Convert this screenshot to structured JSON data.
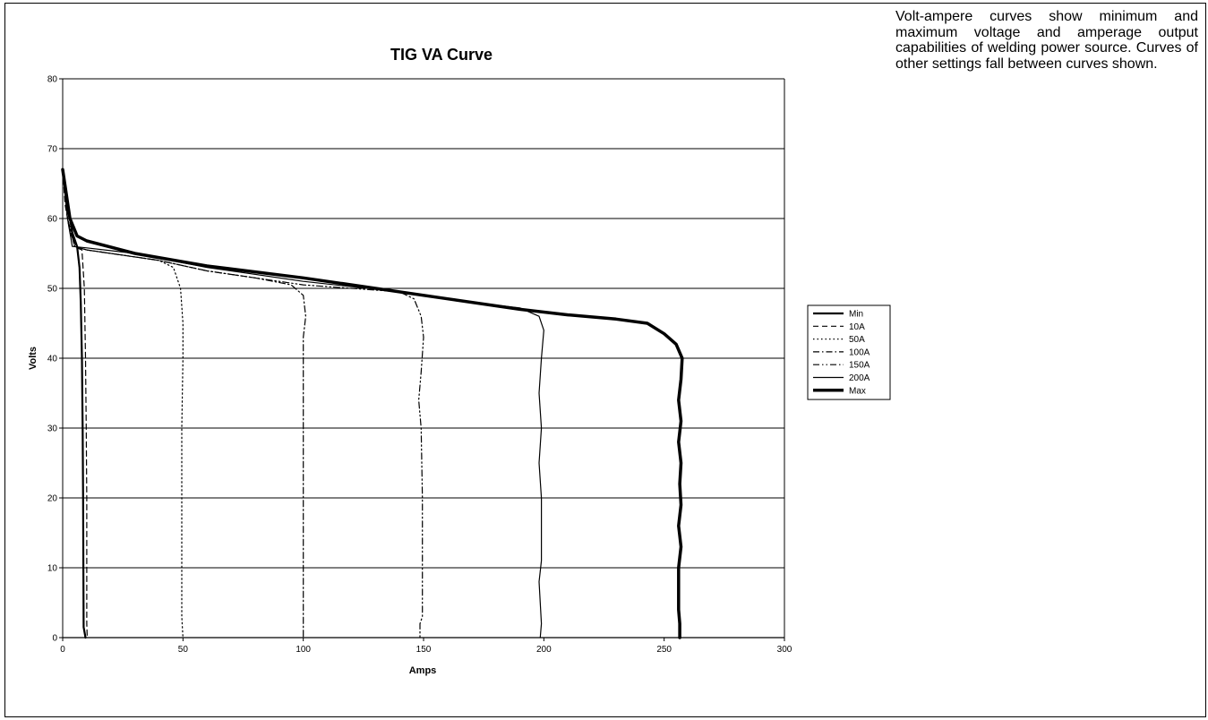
{
  "description": "Volt-ampere curves show minimum and maximum voltage and amperage output capabilities of welding power source. Curves of other settings fall between curves shown.",
  "chart_data": {
    "type": "line",
    "title": "TIG VA Curve",
    "xlabel": "Amps",
    "ylabel": "Volts",
    "xlim": [
      0,
      300
    ],
    "ylim": [
      0,
      80
    ],
    "xticks": [
      0,
      50,
      100,
      150,
      200,
      250,
      300
    ],
    "yticks": [
      0,
      10,
      20,
      30,
      40,
      50,
      60,
      70,
      80
    ],
    "grid": "horizontal",
    "legend_position": "right",
    "series": [
      {
        "name": "Min",
        "dash": "solid",
        "weight": 2.2,
        "points": [
          [
            0,
            67
          ],
          [
            2,
            62
          ],
          [
            3,
            60
          ],
          [
            4,
            58
          ],
          [
            5,
            57
          ],
          [
            6,
            56
          ],
          [
            7,
            53
          ],
          [
            7.5,
            48
          ],
          [
            8,
            40
          ],
          [
            8.3,
            30
          ],
          [
            8.5,
            20
          ],
          [
            8.6,
            10
          ],
          [
            8.7,
            1.5
          ],
          [
            9.5,
            0
          ]
        ]
      },
      {
        "name": "10A",
        "dash": "dash",
        "weight": 1.2,
        "points": [
          [
            0,
            67
          ],
          [
            1,
            62
          ],
          [
            3,
            58
          ],
          [
            6,
            55.8
          ],
          [
            8,
            55.5
          ],
          [
            9,
            50
          ],
          [
            9.5,
            40
          ],
          [
            9.8,
            30
          ],
          [
            10,
            20
          ],
          [
            10,
            10
          ],
          [
            10,
            2
          ],
          [
            10.2,
            0
          ]
        ]
      },
      {
        "name": "50A",
        "dash": "dot",
        "weight": 1.2,
        "points": [
          [
            0,
            67
          ],
          [
            2,
            60
          ],
          [
            5,
            56
          ],
          [
            10,
            55.5
          ],
          [
            20,
            55
          ],
          [
            30,
            54.5
          ],
          [
            40,
            54
          ],
          [
            46,
            53
          ],
          [
            49,
            50
          ],
          [
            50,
            45
          ],
          [
            50,
            40
          ],
          [
            49.5,
            30
          ],
          [
            49.5,
            20
          ],
          [
            49.5,
            10
          ],
          [
            49.5,
            3
          ],
          [
            50,
            0
          ]
        ]
      },
      {
        "name": "100A",
        "dash": "dashdot",
        "weight": 1.2,
        "points": [
          [
            0,
            67
          ],
          [
            2,
            60
          ],
          [
            5,
            56
          ],
          [
            10,
            55.5
          ],
          [
            20,
            55
          ],
          [
            40,
            54
          ],
          [
            60,
            52.5
          ],
          [
            80,
            51.5
          ],
          [
            95,
            50.5
          ],
          [
            100,
            49
          ],
          [
            101,
            46
          ],
          [
            100,
            43
          ],
          [
            100,
            40
          ],
          [
            100,
            30
          ],
          [
            100,
            20
          ],
          [
            100,
            10
          ],
          [
            100,
            0
          ]
        ]
      },
      {
        "name": "150A",
        "dash": "dashdotdot",
        "weight": 1.2,
        "points": [
          [
            0,
            67
          ],
          [
            2,
            60
          ],
          [
            5,
            56
          ],
          [
            10,
            55.5
          ],
          [
            20,
            55
          ],
          [
            40,
            54
          ],
          [
            60,
            52.5
          ],
          [
            80,
            51.5
          ],
          [
            100,
            50.5
          ],
          [
            120,
            50
          ],
          [
            140,
            49.5
          ],
          [
            146,
            48.5
          ],
          [
            149,
            46
          ],
          [
            150,
            43
          ],
          [
            149,
            38
          ],
          [
            148,
            34
          ],
          [
            149,
            30
          ],
          [
            149.5,
            20
          ],
          [
            149.5,
            10
          ],
          [
            149.5,
            3
          ],
          [
            148.5,
            2
          ],
          [
            148.5,
            0
          ]
        ]
      },
      {
        "name": "200A",
        "dash": "solid",
        "weight": 1.2,
        "points": [
          [
            0,
            67
          ],
          [
            2,
            60
          ],
          [
            4,
            56
          ],
          [
            10,
            55.8
          ],
          [
            30,
            55
          ],
          [
            60,
            53
          ],
          [
            100,
            51
          ],
          [
            140,
            49.5
          ],
          [
            170,
            48
          ],
          [
            190,
            47.2
          ],
          [
            198,
            46
          ],
          [
            200,
            44
          ],
          [
            199,
            40
          ],
          [
            198,
            35
          ],
          [
            199,
            30
          ],
          [
            198,
            25
          ],
          [
            199,
            20
          ],
          [
            199,
            11
          ],
          [
            198,
            8
          ],
          [
            198.5,
            5
          ],
          [
            199,
            2
          ],
          [
            198.5,
            0
          ]
        ]
      },
      {
        "name": "Max",
        "dash": "solid",
        "weight": 3.5,
        "points": [
          [
            0,
            67
          ],
          [
            3,
            60
          ],
          [
            6,
            57.5
          ],
          [
            10,
            56.8
          ],
          [
            30,
            55
          ],
          [
            60,
            53.2
          ],
          [
            100,
            51.5
          ],
          [
            130,
            50
          ],
          [
            160,
            48.5
          ],
          [
            190,
            47
          ],
          [
            210,
            46.2
          ],
          [
            230,
            45.6
          ],
          [
            243,
            45
          ],
          [
            250,
            43.5
          ],
          [
            255,
            42
          ],
          [
            257.5,
            40
          ],
          [
            257,
            37
          ],
          [
            256,
            34
          ],
          [
            257,
            31
          ],
          [
            256,
            28
          ],
          [
            257,
            25
          ],
          [
            256.5,
            22
          ],
          [
            257,
            19
          ],
          [
            256,
            16
          ],
          [
            257,
            13
          ],
          [
            256,
            10
          ],
          [
            256,
            6
          ],
          [
            256,
            4
          ],
          [
            256.5,
            2
          ],
          [
            256.5,
            0
          ]
        ]
      }
    ]
  }
}
